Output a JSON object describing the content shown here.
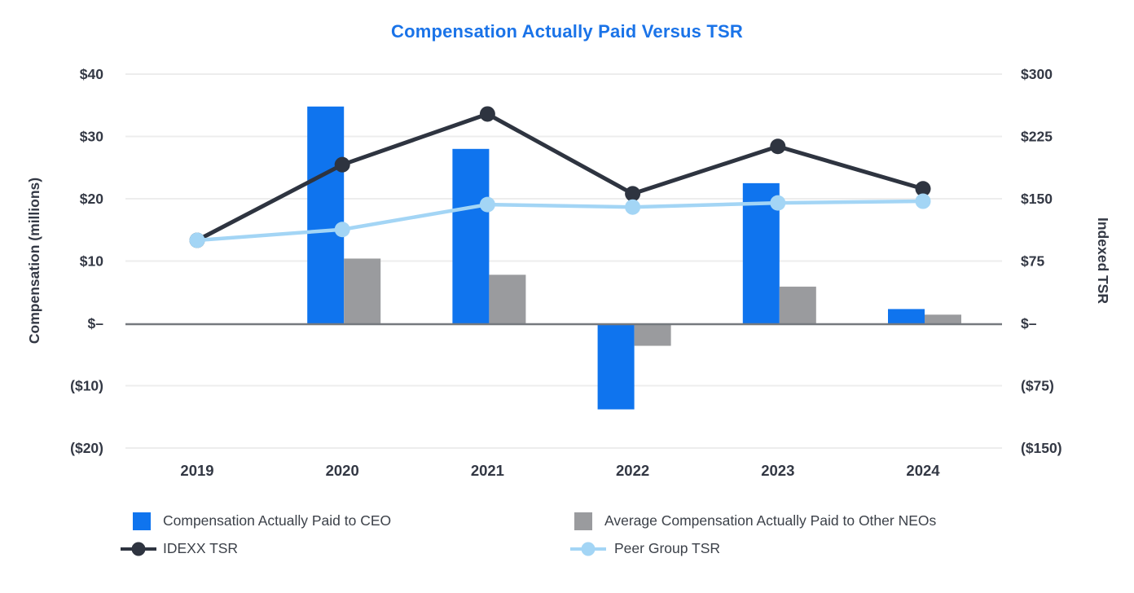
{
  "title": "Compensation Actually Paid Versus TSR",
  "colors": {
    "title": "#1A73E8",
    "ceo_bar": "#0F74EE",
    "neo_bar": "#9A9B9E",
    "idexx_line": "#2E3440",
    "peer_line": "#A3D5F5",
    "gridline": "#EDEDED",
    "zero_line": "#75797E",
    "axis_text": "#333844",
    "legend_text": "#3C4149"
  },
  "chart_data": {
    "type": "combo-bar-line",
    "title": "Compensation Actually Paid Versus TSR",
    "categories": [
      "2019",
      "2020",
      "2021",
      "2022",
      "2023",
      "2024"
    ],
    "series": [
      {
        "name": "Compensation Actually Paid to CEO",
        "type": "bar",
        "axis": "left",
        "color_key": "ceo_bar",
        "values": [
          null,
          34.8,
          28.0,
          -13.8,
          22.5,
          2.3
        ]
      },
      {
        "name": "Average Compensation Actually Paid to Other NEOs",
        "type": "bar",
        "axis": "left",
        "color_key": "neo_bar",
        "values": [
          null,
          10.4,
          7.8,
          -3.6,
          5.9,
          1.4
        ]
      },
      {
        "name": "IDEXX TSR",
        "type": "line",
        "axis": "right",
        "color_key": "idexx_line",
        "values": [
          100,
          191,
          252,
          156,
          213,
          162
        ]
      },
      {
        "name": "Peer Group TSR",
        "type": "line",
        "axis": "right",
        "color_key": "peer_line",
        "values": [
          100,
          113,
          143,
          140,
          145,
          147
        ]
      }
    ],
    "left_axis": {
      "label": "Compensation (millions)",
      "range": [
        -20,
        40
      ],
      "ticks": [
        {
          "value": 40,
          "label": "$40"
        },
        {
          "value": 30,
          "label": "$30"
        },
        {
          "value": 20,
          "label": "$20"
        },
        {
          "value": 10,
          "label": "$10"
        },
        {
          "value": 0,
          "label": "$–"
        },
        {
          "value": -10,
          "label": "($10)"
        },
        {
          "value": -20,
          "label": "($20)"
        }
      ]
    },
    "right_axis": {
      "label": "Indexed TSR",
      "range": [
        -150,
        300
      ],
      "ticks": [
        {
          "value": 300,
          "label": "$300"
        },
        {
          "value": 225,
          "label": "$225"
        },
        {
          "value": 150,
          "label": "$150"
        },
        {
          "value": 75,
          "label": "$75"
        },
        {
          "value": 0,
          "label": "$–"
        },
        {
          "value": -75,
          "label": "($75)"
        },
        {
          "value": -150,
          "label": "($150)"
        }
      ]
    },
    "grid": true,
    "legend_position": "bottom"
  },
  "legend": {
    "rows": [
      [
        {
          "series_index": 0,
          "marker": "square"
        },
        {
          "series_index": 1,
          "marker": "square"
        }
      ],
      [
        {
          "series_index": 2,
          "marker": "dotline"
        },
        {
          "series_index": 3,
          "marker": "dotline"
        }
      ]
    ]
  }
}
